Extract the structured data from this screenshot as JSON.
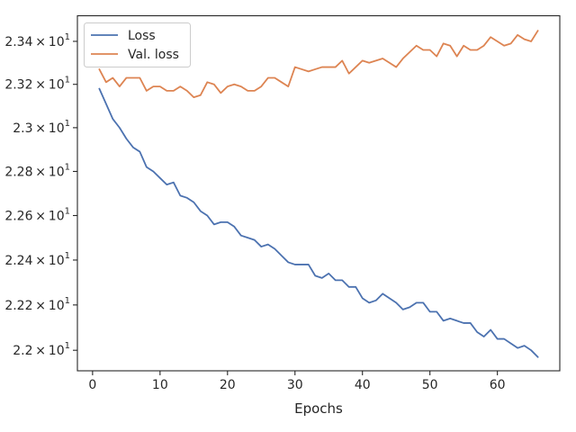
{
  "chart_data": {
    "type": "line",
    "title": "",
    "xlabel": "Epochs",
    "ylabel": "",
    "xlim": [
      -2.25,
      69.25
    ],
    "ylim": [
      21.91,
      23.52
    ],
    "xticks": [
      0,
      10,
      20,
      30,
      40,
      50,
      60
    ],
    "yticks": [
      {
        "value": 22.0,
        "mant": "2.2",
        "exp": "1"
      },
      {
        "value": 22.2,
        "mant": "2.22",
        "exp": "1"
      },
      {
        "value": 22.4,
        "mant": "2.24",
        "exp": "1"
      },
      {
        "value": 22.6,
        "mant": "2.26",
        "exp": "1"
      },
      {
        "value": 22.8,
        "mant": "2.28",
        "exp": "1"
      },
      {
        "value": 23.0,
        "mant": "2.3",
        "exp": "1"
      },
      {
        "value": 23.2,
        "mant": "2.32",
        "exp": "1"
      },
      {
        "value": 23.4,
        "mant": "2.34",
        "exp": "1"
      }
    ],
    "y_scale": "log",
    "grid": false,
    "legend_position": "top-left",
    "series": [
      {
        "name": "Loss",
        "color": "#4c72b0",
        "x": [
          1,
          2,
          3,
          4,
          5,
          6,
          7,
          8,
          9,
          10,
          11,
          12,
          13,
          14,
          15,
          16,
          17,
          18,
          19,
          20,
          21,
          22,
          23,
          24,
          25,
          26,
          27,
          28,
          29,
          30,
          31,
          32,
          33,
          34,
          35,
          36,
          37,
          38,
          39,
          40,
          41,
          42,
          43,
          44,
          45,
          46,
          47,
          48,
          49,
          50,
          51,
          52,
          53,
          54,
          55,
          56,
          57,
          58,
          59,
          60,
          61,
          62,
          63,
          64,
          65,
          66
        ],
        "values": [
          23.18,
          23.11,
          23.04,
          23.0,
          22.95,
          22.91,
          22.89,
          22.82,
          22.8,
          22.77,
          22.74,
          22.75,
          22.69,
          22.68,
          22.66,
          22.62,
          22.6,
          22.56,
          22.57,
          22.57,
          22.55,
          22.51,
          22.5,
          22.49,
          22.46,
          22.47,
          22.45,
          22.42,
          22.39,
          22.38,
          22.38,
          22.38,
          22.33,
          22.32,
          22.34,
          22.31,
          22.31,
          22.28,
          22.28,
          22.23,
          22.21,
          22.22,
          22.25,
          22.23,
          22.21,
          22.18,
          22.19,
          22.21,
          22.21,
          22.17,
          22.17,
          22.13,
          22.14,
          22.13,
          22.12,
          22.12,
          22.08,
          22.06,
          22.09,
          22.05,
          22.05,
          22.03,
          22.01,
          22.02,
          22.0,
          21.97
        ]
      },
      {
        "name": "Val. loss",
        "color": "#dd8452",
        "x": [
          1,
          2,
          3,
          4,
          5,
          6,
          7,
          8,
          9,
          10,
          11,
          12,
          13,
          14,
          15,
          16,
          17,
          18,
          19,
          20,
          21,
          22,
          23,
          24,
          25,
          26,
          27,
          28,
          29,
          30,
          31,
          32,
          33,
          34,
          35,
          36,
          37,
          38,
          39,
          40,
          41,
          42,
          43,
          44,
          45,
          46,
          47,
          48,
          49,
          50,
          51,
          52,
          53,
          54,
          55,
          56,
          57,
          58,
          59,
          60,
          61,
          62,
          63,
          64,
          65,
          66
        ],
        "values": [
          23.27,
          23.21,
          23.23,
          23.19,
          23.23,
          23.23,
          23.23,
          23.17,
          23.19,
          23.19,
          23.17,
          23.17,
          23.19,
          23.17,
          23.14,
          23.15,
          23.21,
          23.2,
          23.16,
          23.19,
          23.2,
          23.19,
          23.17,
          23.17,
          23.19,
          23.23,
          23.23,
          23.21,
          23.19,
          23.28,
          23.27,
          23.26,
          23.27,
          23.28,
          23.28,
          23.28,
          23.31,
          23.25,
          23.28,
          23.31,
          23.3,
          23.31,
          23.32,
          23.3,
          23.28,
          23.32,
          23.35,
          23.38,
          23.36,
          23.36,
          23.33,
          23.39,
          23.38,
          23.33,
          23.38,
          23.36,
          23.36,
          23.38,
          23.42,
          23.4,
          23.38,
          23.39,
          23.43,
          23.41,
          23.4,
          23.45
        ]
      }
    ]
  }
}
